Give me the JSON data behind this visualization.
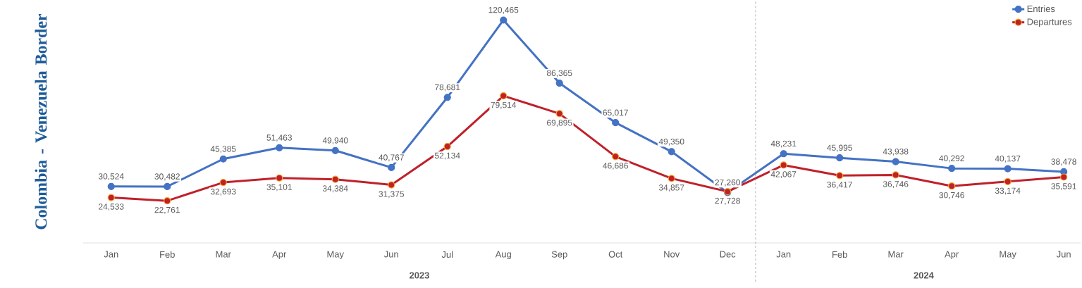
{
  "chart_data": {
    "type": "line",
    "ylabel": "Colombia - Venezuela Border",
    "categories": [
      "Jan",
      "Feb",
      "Mar",
      "Apr",
      "May",
      "Jun",
      "Jul",
      "Aug",
      "Sep",
      "Oct",
      "Nov",
      "Dec",
      "Jan",
      "Feb",
      "Mar",
      "Apr",
      "May",
      "Jun"
    ],
    "series": [
      {
        "name": "Entries",
        "color": "#4472c4",
        "values": [
          30524,
          30482,
          45385,
          51463,
          49940,
          40767,
          78681,
          120465,
          86365,
          65017,
          49350,
          27260,
          48231,
          45995,
          43938,
          40292,
          40137,
          38478
        ],
        "value_labels": [
          "30,524",
          "30,482",
          "45,385",
          "51,463",
          "49,940",
          "40,767",
          "78,681",
          "120,465",
          "86,365",
          "65,017",
          "49,350",
          "27,260",
          "48,231",
          "45,995",
          "43,938",
          "40,292",
          "40,137",
          "38,478"
        ]
      },
      {
        "name": "Departures",
        "color": "#c0202a",
        "values": [
          24533,
          22761,
          32693,
          35101,
          34384,
          31375,
          52134,
          79514,
          69895,
          46686,
          34857,
          27728,
          42067,
          36417,
          36746,
          30746,
          33174,
          35591
        ],
        "value_labels": [
          "24,533",
          "22,761",
          "32,693",
          "35,101",
          "34,384",
          "31,375",
          "52,134",
          "79,514",
          "69,895",
          "46,686",
          "34,857",
          "27,728",
          "42,067",
          "36,417",
          "36,746",
          "30,746",
          "33,174",
          "35,591"
        ]
      }
    ],
    "annotations": [
      "2023",
      "2024"
    ],
    "marker": "circle",
    "legend": "top right",
    "grid": false
  }
}
